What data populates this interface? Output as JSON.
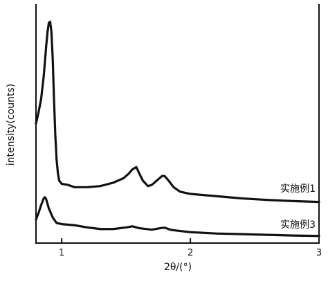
{
  "chart_data": {
    "type": "line",
    "xlabel": "2θ/(°)",
    "ylabel": "intensity(counts)",
    "xlim": [
      0.8,
      3
    ],
    "ylim": [
      0,
      100
    ],
    "xticks": [
      "1",
      "2",
      "3"
    ],
    "y_tick_labels": false,
    "grid": false,
    "legend": "inline labels at right, above each curve",
    "series": [
      {
        "name": "实施例1",
        "x": [
          0.8,
          0.82,
          0.84,
          0.86,
          0.87,
          0.88,
          0.89,
          0.9,
          0.91,
          0.92,
          0.93,
          0.94,
          0.95,
          0.96,
          0.97,
          0.98,
          1.0,
          1.05,
          1.1,
          1.2,
          1.3,
          1.4,
          1.48,
          1.52,
          1.55,
          1.58,
          1.6,
          1.63,
          1.67,
          1.7,
          1.74,
          1.78,
          1.8,
          1.83,
          1.87,
          1.92,
          2.0,
          2.2,
          2.4,
          2.6,
          2.8,
          3.0
        ],
        "y": [
          51,
          56,
          62,
          72,
          79,
          86,
          92,
          96,
          96.5,
          92,
          80,
          62,
          46,
          35,
          29,
          25.5,
          24,
          23.5,
          22.5,
          22.5,
          23,
          24.5,
          26.5,
          28.5,
          30.5,
          31.5,
          29,
          25.5,
          23,
          23.5,
          25.5,
          27.5,
          27.5,
          25.5,
          22.5,
          20.5,
          19.5,
          18.5,
          17.5,
          16.8,
          16.3,
          15.9
        ]
      },
      {
        "name": "实施例3",
        "x": [
          0.8,
          0.82,
          0.84,
          0.86,
          0.87,
          0.88,
          0.9,
          0.93,
          0.96,
          1.0,
          1.1,
          1.2,
          1.3,
          1.4,
          1.5,
          1.55,
          1.6,
          1.7,
          1.78,
          1.8,
          1.85,
          2.0,
          2.2,
          2.4,
          2.6,
          2.8,
          3.0
        ],
        "y": [
          8,
          11,
          14.5,
          17.5,
          18,
          17,
          13,
          9,
          6.5,
          6,
          5.5,
          4.5,
          3.8,
          3.8,
          4.5,
          5,
          4.2,
          3.5,
          4.3,
          4.4,
          3.4,
          2.4,
          1.8,
          1.5,
          1.2,
          0.9,
          0.7
        ]
      }
    ]
  }
}
